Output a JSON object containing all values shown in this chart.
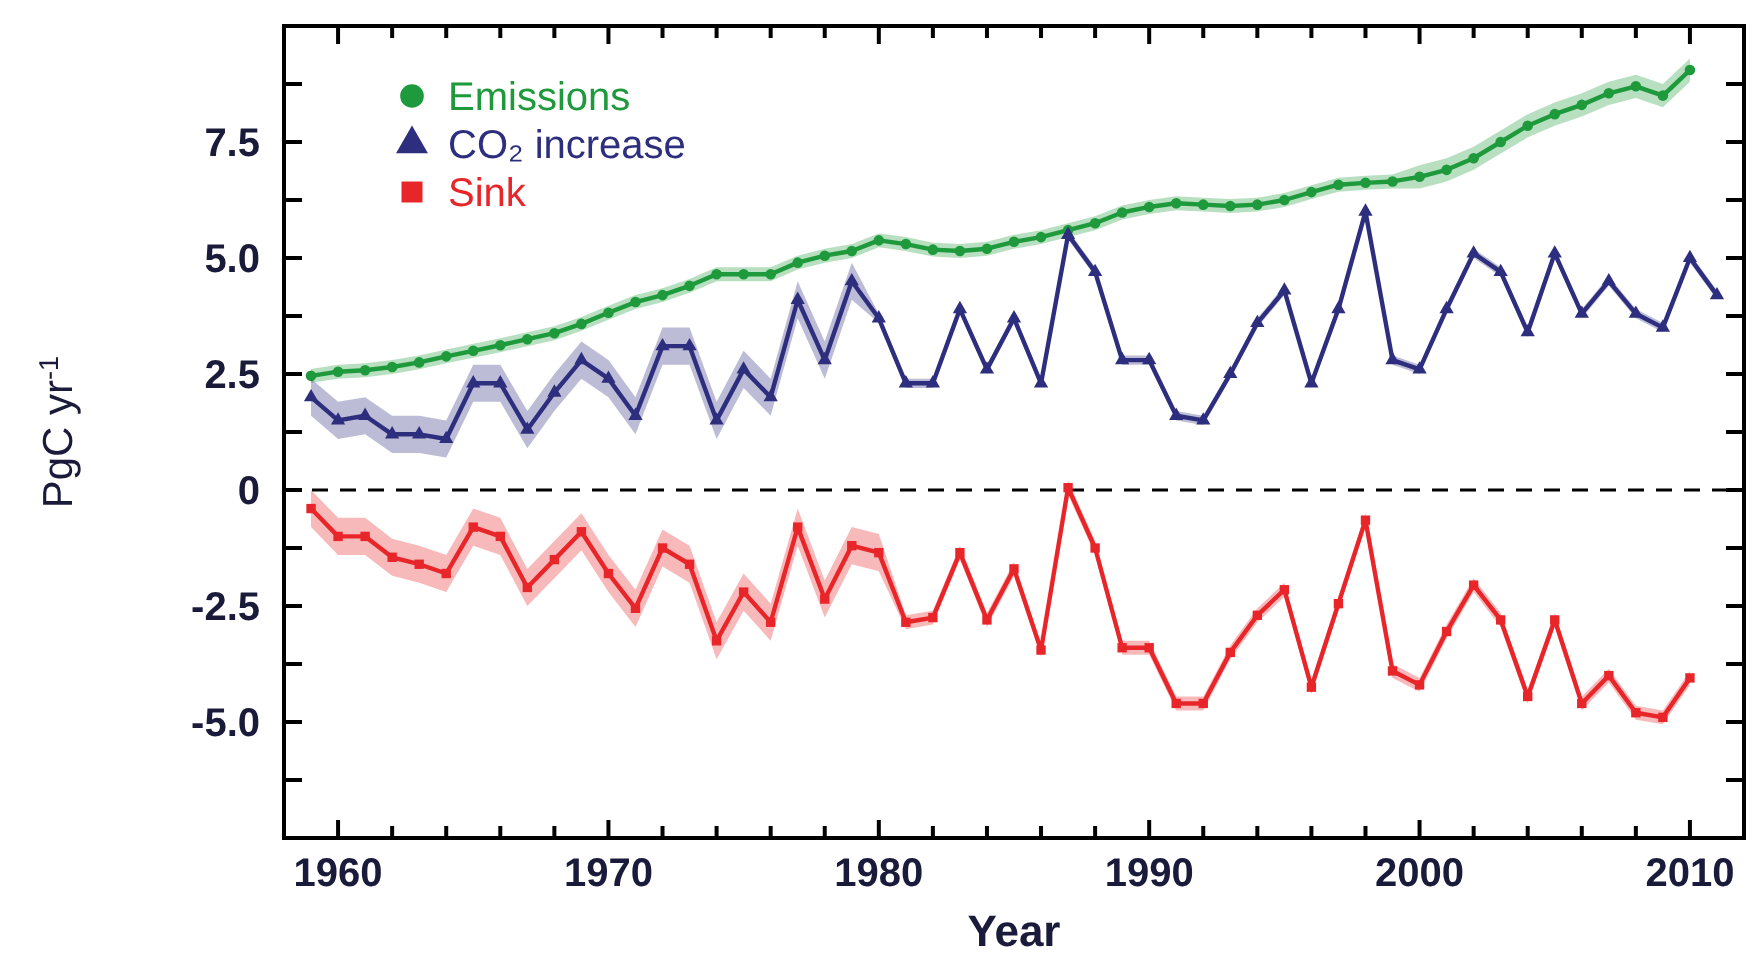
{
  "chart_data": {
    "type": "line",
    "xlabel": "Year",
    "ylabel": "PgC yr$^{-1}$",
    "xlim": [
      1958,
      2012
    ],
    "ylim": [
      -7.5,
      10
    ],
    "xticks": [
      {
        "value": 1960,
        "label": "1960"
      },
      {
        "value": 1962,
        "label": null
      },
      {
        "value": 1964,
        "label": null
      },
      {
        "value": 1966,
        "label": null
      },
      {
        "value": 1968,
        "label": null
      },
      {
        "value": 1970,
        "label": "1970"
      },
      {
        "value": 1972,
        "label": null
      },
      {
        "value": 1974,
        "label": null
      },
      {
        "value": 1976,
        "label": null
      },
      {
        "value": 1978,
        "label": null
      },
      {
        "value": 1980,
        "label": "1980"
      },
      {
        "value": 1982,
        "label": null
      },
      {
        "value": 1984,
        "label": null
      },
      {
        "value": 1986,
        "label": null
      },
      {
        "value": 1988,
        "label": null
      },
      {
        "value": 1990,
        "label": "1990"
      },
      {
        "value": 1992,
        "label": null
      },
      {
        "value": 1994,
        "label": null
      },
      {
        "value": 1996,
        "label": null
      },
      {
        "value": 1998,
        "label": null
      },
      {
        "value": 2000,
        "label": "2000"
      },
      {
        "value": 2002,
        "label": null
      },
      {
        "value": 2004,
        "label": null
      },
      {
        "value": 2006,
        "label": null
      },
      {
        "value": 2008,
        "label": null
      },
      {
        "value": 2010,
        "label": "2010"
      }
    ],
    "yticks": [
      {
        "value": -6.25,
        "label": null
      },
      {
        "value": -5,
        "label": "-5.0"
      },
      {
        "value": -3.75,
        "label": null
      },
      {
        "value": -2.5,
        "label": "-2.5"
      },
      {
        "value": -1.25,
        "label": null
      },
      0,
      {
        "value": 1.25,
        "label": null
      },
      {
        "value": 2.5,
        "label": "2.5"
      },
      {
        "value": 3.75,
        "label": null
      },
      {
        "value": 5,
        "label": "5.0"
      },
      {
        "value": 6.25,
        "label": null
      },
      {
        "value": 7.5,
        "label": "7.5"
      },
      {
        "value": 8.75,
        "label": null
      }
    ],
    "grid": false,
    "legend": "top left",
    "line_style": "solid",
    "ref_lines": [
      {
        "axis": "y",
        "value": 0,
        "color": "#000000",
        "line_style": "dashed"
      }
    ],
    "series": [
      {
        "name": "Emissions",
        "color": "#1e9a3c",
        "marker": "circle",
        "x": [
          1959,
          1960,
          1961,
          1962,
          1963,
          1964,
          1965,
          1966,
          1967,
          1968,
          1969,
          1970,
          1971,
          1972,
          1973,
          1974,
          1975,
          1976,
          1977,
          1978,
          1979,
          1980,
          1981,
          1982,
          1983,
          1984,
          1985,
          1986,
          1987,
          1988,
          1989,
          1990,
          1991,
          1992,
          1993,
          1994,
          1995,
          1996,
          1997,
          1998,
          1999,
          2000,
          2001,
          2002,
          2003,
          2004,
          2005,
          2006,
          2007,
          2008,
          2009,
          2010
        ],
        "values": [
          2.46,
          2.55,
          2.58,
          2.65,
          2.75,
          2.88,
          3.0,
          3.12,
          3.25,
          3.38,
          3.58,
          3.82,
          4.05,
          4.2,
          4.4,
          4.65,
          4.65,
          4.65,
          4.9,
          5.05,
          5.15,
          5.38,
          5.3,
          5.18,
          5.15,
          5.2,
          5.35,
          5.45,
          5.6,
          5.75,
          5.98,
          6.1,
          6.18,
          6.15,
          6.12,
          6.15,
          6.25,
          6.42,
          6.58,
          6.62,
          6.65,
          6.75,
          6.9,
          7.15,
          7.5,
          7.85,
          8.1,
          8.3,
          8.55,
          8.7,
          8.5,
          9.05
        ],
        "lower": [
          2.31,
          2.4,
          2.43,
          2.5,
          2.6,
          2.73,
          2.85,
          2.97,
          3.1,
          3.23,
          3.43,
          3.67,
          3.9,
          4.05,
          4.25,
          4.5,
          4.5,
          4.5,
          4.75,
          4.9,
          5.0,
          5.23,
          5.15,
          5.03,
          5.0,
          5.05,
          5.2,
          5.3,
          5.45,
          5.6,
          5.83,
          5.95,
          6.03,
          6.0,
          5.97,
          6.0,
          6.1,
          6.27,
          6.43,
          6.47,
          6.5,
          6.5,
          6.65,
          6.9,
          7.25,
          7.6,
          7.85,
          8.05,
          8.3,
          8.45,
          8.25,
          8.8
        ],
        "upper": [
          2.61,
          2.7,
          2.73,
          2.8,
          2.9,
          3.03,
          3.15,
          3.27,
          3.4,
          3.53,
          3.73,
          3.97,
          4.2,
          4.35,
          4.55,
          4.8,
          4.8,
          4.8,
          5.05,
          5.2,
          5.3,
          5.53,
          5.45,
          5.33,
          5.3,
          5.35,
          5.5,
          5.6,
          5.75,
          5.9,
          6.13,
          6.25,
          6.33,
          6.3,
          6.27,
          6.3,
          6.4,
          6.57,
          6.73,
          6.77,
          6.8,
          7.0,
          7.15,
          7.4,
          7.75,
          8.1,
          8.35,
          8.55,
          8.8,
          8.95,
          8.75,
          9.3
        ]
      },
      {
        "name": "CO₂ increase",
        "color": "#2e2e7e",
        "marker": "triangle",
        "x": [
          1959,
          1960,
          1961,
          1962,
          1963,
          1964,
          1965,
          1966,
          1967,
          1968,
          1969,
          1970,
          1971,
          1972,
          1973,
          1974,
          1975,
          1976,
          1977,
          1978,
          1979,
          1980,
          1981,
          1982,
          1983,
          1984,
          1985,
          1986,
          1987,
          1988,
          1989,
          1990,
          1991,
          1992,
          1993,
          1994,
          1995,
          1996,
          1997,
          1998,
          1999,
          2000,
          2001,
          2002,
          2003,
          2004,
          2005,
          2006,
          2007,
          2008,
          2009,
          2010,
          2011
        ],
        "values": [
          2.0,
          1.5,
          1.6,
          1.2,
          1.2,
          1.1,
          2.3,
          2.3,
          1.3,
          2.1,
          2.8,
          2.4,
          1.6,
          3.1,
          3.1,
          1.5,
          2.6,
          2.0,
          4.1,
          2.8,
          4.5,
          3.7,
          2.3,
          2.3,
          3.9,
          2.6,
          3.7,
          2.3,
          5.5,
          4.7,
          2.8,
          2.8,
          1.6,
          1.5,
          2.5,
          3.6,
          4.3,
          2.3,
          3.9,
          6.0,
          2.8,
          2.6,
          3.9,
          5.1,
          4.7,
          3.4,
          5.1,
          3.8,
          4.5,
          3.8,
          3.5,
          5.0,
          4.2
        ],
        "lower": [
          1.6,
          1.1,
          1.2,
          0.8,
          0.8,
          0.7,
          1.9,
          1.9,
          0.9,
          1.7,
          2.4,
          2.0,
          1.2,
          2.7,
          2.7,
          1.1,
          2.2,
          1.6,
          3.7,
          2.4,
          4.1,
          3.6,
          2.2,
          2.2,
          3.8,
          2.5,
          3.6,
          2.2,
          5.4,
          4.6,
          2.7,
          2.7,
          1.5,
          1.4,
          2.4,
          3.5,
          4.2,
          2.2,
          3.8,
          5.9,
          2.7,
          2.5,
          3.8,
          5.0,
          4.6,
          3.3,
          5.0,
          3.7,
          4.4,
          3.7,
          3.4,
          4.9,
          4.1
        ],
        "upper": [
          2.4,
          1.9,
          2.0,
          1.6,
          1.6,
          1.5,
          2.7,
          2.7,
          1.7,
          2.5,
          3.2,
          2.8,
          2.0,
          3.5,
          3.5,
          1.9,
          3.0,
          2.4,
          4.5,
          3.2,
          4.9,
          3.8,
          2.4,
          2.4,
          4.0,
          2.7,
          3.8,
          2.4,
          5.6,
          4.8,
          2.9,
          2.9,
          1.7,
          1.6,
          2.6,
          3.7,
          4.4,
          2.4,
          4.0,
          6.1,
          2.9,
          2.7,
          4.0,
          5.2,
          4.8,
          3.5,
          5.2,
          3.9,
          4.6,
          3.9,
          3.6,
          5.1,
          4.3
        ]
      },
      {
        "name": "Sink",
        "color": "#e8262a",
        "marker": "square",
        "x": [
          1959,
          1960,
          1961,
          1962,
          1963,
          1964,
          1965,
          1966,
          1967,
          1968,
          1969,
          1970,
          1971,
          1972,
          1973,
          1974,
          1975,
          1976,
          1977,
          1978,
          1979,
          1980,
          1981,
          1982,
          1983,
          1984,
          1985,
          1986,
          1987,
          1988,
          1989,
          1990,
          1991,
          1992,
          1993,
          1994,
          1995,
          1996,
          1997,
          1998,
          1999,
          2000,
          2001,
          2002,
          2003,
          2004,
          2005,
          2006,
          2007,
          2008,
          2009,
          2010
        ],
        "values": [
          -0.4,
          -1.0,
          -1.0,
          -1.45,
          -1.6,
          -1.8,
          -0.8,
          -1.0,
          -2.1,
          -1.5,
          -0.9,
          -1.8,
          -2.55,
          -1.25,
          -1.6,
          -3.25,
          -2.2,
          -2.85,
          -0.8,
          -2.35,
          -1.2,
          -1.35,
          -2.85,
          -2.75,
          -1.35,
          -2.8,
          -1.7,
          -3.45,
          0.05,
          -1.25,
          -3.4,
          -3.4,
          -4.6,
          -4.6,
          -3.5,
          -2.7,
          -2.15,
          -4.25,
          -2.45,
          -0.65,
          -3.9,
          -4.2,
          -3.05,
          -2.05,
          -2.8,
          -4.45,
          -2.8,
          -4.6,
          -4.0,
          -4.8,
          -4.9,
          -4.05
        ],
        "lower": [
          -0.8,
          -1.4,
          -1.4,
          -1.85,
          -2.0,
          -2.2,
          -1.2,
          -1.4,
          -2.5,
          -1.9,
          -1.3,
          -2.2,
          -2.95,
          -1.65,
          -2.0,
          -3.65,
          -2.6,
          -3.25,
          -1.2,
          -2.75,
          -1.6,
          -1.75,
          -3.0,
          -2.9,
          -1.5,
          -2.95,
          -1.85,
          -3.6,
          -0.1,
          -1.4,
          -3.55,
          -3.55,
          -4.75,
          -4.75,
          -3.65,
          -2.85,
          -2.3,
          -4.4,
          -2.6,
          -0.8,
          -4.05,
          -4.35,
          -3.2,
          -2.2,
          -2.95,
          -4.6,
          -2.95,
          -4.75,
          -4.15,
          -4.95,
          -5.05,
          -4.2
        ],
        "upper": [
          0.0,
          -0.6,
          -0.6,
          -1.05,
          -1.2,
          -1.4,
          -0.4,
          -0.6,
          -1.7,
          -1.1,
          -0.5,
          -1.4,
          -2.15,
          -0.85,
          -1.2,
          -2.85,
          -1.8,
          -2.45,
          -0.4,
          -1.95,
          -0.8,
          -0.95,
          -2.7,
          -2.6,
          -1.2,
          -2.65,
          -1.55,
          -3.3,
          0.2,
          -1.1,
          -3.25,
          -3.25,
          -4.45,
          -4.45,
          -3.35,
          -2.55,
          -2.0,
          -4.1,
          -2.3,
          -0.5,
          -3.75,
          -4.05,
          -2.9,
          -1.9,
          -2.65,
          -4.3,
          -2.65,
          -4.45,
          -3.85,
          -4.65,
          -4.75,
          -3.9
        ]
      }
    ]
  }
}
